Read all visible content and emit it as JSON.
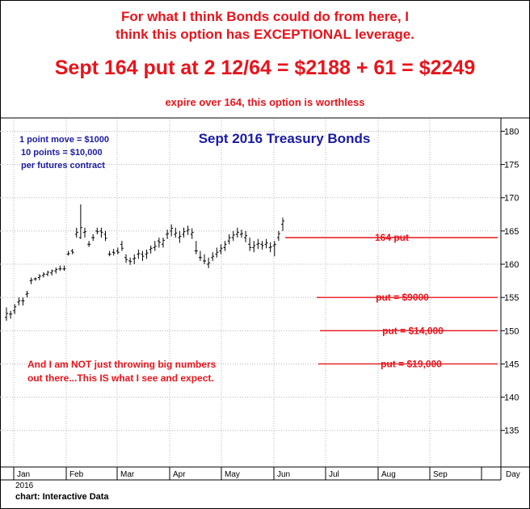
{
  "header": {
    "line1": "For what I think Bonds could do from here, I",
    "line2": "think this option has EXCEPTIONAL leverage.",
    "line3": "Sept 164 put at 2 12/64 = $2188 + 61 = $2249",
    "line4": "expire over 164, this option is worthless"
  },
  "notes": {
    "note1": "1 point move = $1000",
    "note2": "10 points = $10,000",
    "note3": "per futures contract",
    "red1": "And I am NOT just throwing big numbers",
    "red2": "out there...This IS what I see and expect."
  },
  "footer": "chart: Interactive Data",
  "chart_data": {
    "type": "bar",
    "title": "Sept 2016 Treasury Bonds",
    "ylim": [
      129.5,
      182
    ],
    "y_ticks": [
      135,
      140,
      145,
      150,
      155,
      160,
      165,
      170,
      175,
      180
    ],
    "x_months": [
      "Jan",
      "Feb",
      "Mar",
      "Apr",
      "May",
      "Jun",
      "Jul",
      "Aug",
      "Sep"
    ],
    "x_day_label": "Day",
    "year_label": "2016",
    "colors": {
      "annotation": "#e8141c",
      "title": "#1a1aa6",
      "bars": "#000000"
    },
    "ohlc": [
      [
        152.0,
        153.5,
        151.5,
        152.6
      ],
      [
        152.5,
        153.0,
        151.8,
        152.5
      ],
      [
        153.0,
        154.0,
        152.5,
        153.6
      ],
      [
        154.3,
        155.0,
        153.8,
        154.5
      ],
      [
        154.5,
        155.0,
        153.8,
        154.5
      ],
      [
        155.5,
        156.0,
        155.0,
        155.6
      ],
      [
        157.5,
        158.0,
        157.0,
        157.6
      ],
      [
        157.8,
        158.0,
        157.5,
        157.8
      ],
      [
        158.0,
        158.5,
        157.6,
        158.2
      ],
      [
        158.3,
        158.8,
        158.0,
        158.5
      ],
      [
        158.5,
        159.0,
        158.2,
        158.8
      ],
      [
        158.7,
        159.2,
        158.3,
        159.0
      ],
      [
        159.0,
        159.5,
        158.6,
        159.2
      ],
      [
        159.3,
        159.8,
        159.0,
        159.3
      ],
      [
        159.3,
        159.8,
        159.0,
        159.3
      ],
      [
        161.5,
        162.0,
        161.3,
        161.6
      ],
      [
        162.0,
        162.3,
        161.5,
        161.8
      ],
      [
        164.5,
        165.5,
        164.0,
        164.8
      ],
      [
        164.0,
        169.0,
        163.8,
        165.5
      ],
      [
        164.8,
        165.5,
        164.0,
        164.9
      ],
      [
        163.0,
        163.5,
        162.6,
        163.0
      ],
      [
        164.0,
        164.5,
        163.5,
        164.0
      ],
      [
        165.0,
        165.5,
        164.5,
        164.9
      ],
      [
        165.0,
        165.5,
        164.0,
        164.8
      ],
      [
        164.5,
        165.0,
        163.5,
        163.9
      ],
      [
        161.5,
        162.0,
        161.2,
        161.5
      ],
      [
        161.8,
        162.3,
        161.3,
        161.7
      ],
      [
        162.0,
        162.5,
        161.5,
        161.8
      ],
      [
        163.0,
        163.5,
        162.0,
        162.4
      ],
      [
        161.0,
        161.5,
        160.2,
        160.7
      ],
      [
        160.5,
        161.0,
        159.9,
        160.4
      ],
      [
        160.8,
        161.5,
        160.0,
        160.9
      ],
      [
        161.5,
        162.2,
        160.8,
        161.6
      ],
      [
        161.5,
        162.0,
        160.5,
        161.2
      ],
      [
        161.5,
        162.2,
        160.8,
        161.7
      ],
      [
        162.2,
        162.8,
        161.6,
        162.4
      ],
      [
        162.5,
        163.5,
        162.0,
        162.7
      ],
      [
        163.5,
        164.0,
        162.5,
        163.3
      ],
      [
        163.0,
        164.0,
        162.5,
        163.6
      ],
      [
        164.5,
        165.2,
        163.8,
        164.6
      ],
      [
        165.0,
        166.0,
        164.2,
        165.4
      ],
      [
        164.5,
        165.5,
        164.0,
        164.7
      ],
      [
        164.0,
        165.0,
        163.2,
        164.2
      ],
      [
        164.5,
        165.5,
        164.0,
        164.9
      ],
      [
        165.0,
        165.8,
        164.4,
        165.2
      ],
      [
        164.5,
        165.4,
        163.8,
        164.8
      ],
      [
        162.0,
        163.5,
        161.5,
        162.0
      ],
      [
        161.0,
        162.0,
        160.5,
        161.0
      ],
      [
        160.5,
        161.5,
        160.0,
        160.5
      ],
      [
        160.0,
        161.0,
        159.4,
        160.2
      ],
      [
        161.0,
        161.8,
        160.5,
        161.2
      ],
      [
        161.5,
        162.5,
        161.0,
        161.8
      ],
      [
        162.0,
        163.0,
        161.5,
        162.4
      ],
      [
        162.5,
        163.5,
        162.0,
        163.0
      ],
      [
        163.5,
        164.5,
        163.0,
        164.0
      ],
      [
        164.0,
        165.0,
        163.5,
        164.4
      ],
      [
        164.5,
        165.5,
        164.0,
        164.8
      ],
      [
        164.5,
        165.2,
        164.0,
        164.6
      ],
      [
        164.0,
        165.0,
        163.3,
        164.3
      ],
      [
        163.0,
        164.0,
        162.0,
        162.5
      ],
      [
        162.5,
        163.5,
        161.8,
        162.8
      ],
      [
        163.0,
        163.8,
        162.3,
        163.1
      ],
      [
        163.0,
        163.5,
        162.2,
        162.8
      ],
      [
        163.0,
        163.8,
        162.4,
        163.2
      ],
      [
        162.5,
        163.3,
        161.8,
        162.6
      ],
      [
        162.8,
        163.5,
        161.2,
        163.0
      ],
      [
        164.0,
        165.0,
        163.5,
        164.6
      ],
      [
        166.0,
        167.0,
        165.0,
        166.5
      ]
    ],
    "levels": [
      {
        "value": 164,
        "label": "164 put"
      },
      {
        "value": 155,
        "label": "put = $9000"
      },
      {
        "value": 150,
        "label": "put = $14,000"
      },
      {
        "value": 145,
        "label": "put = $19,000"
      }
    ]
  }
}
